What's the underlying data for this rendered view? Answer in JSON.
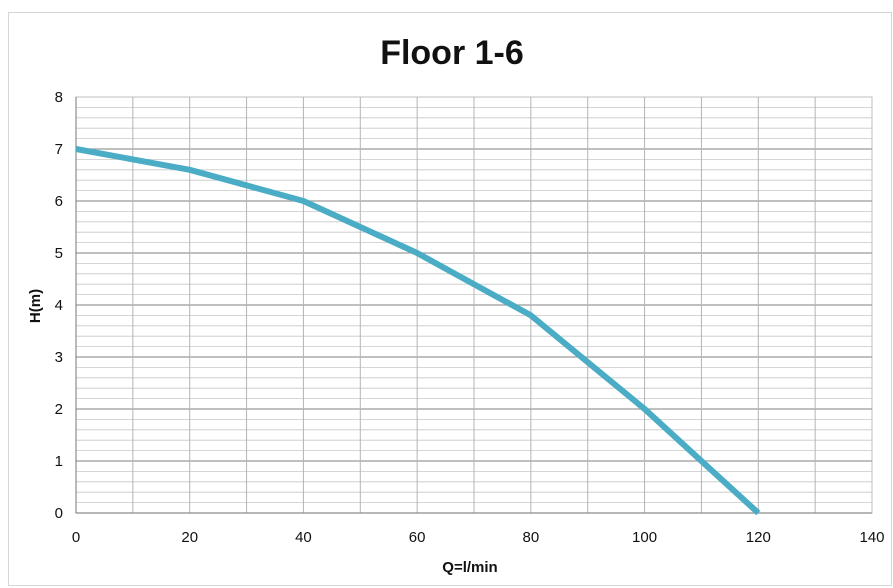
{
  "chart_data": {
    "type": "line",
    "title": "Floor 1-6",
    "xlabel": "Q=l/min",
    "ylabel": "H(m)",
    "xlim": [
      0,
      140
    ],
    "ylim": [
      0,
      8
    ],
    "x_ticks": [
      0,
      20,
      40,
      60,
      80,
      100,
      120,
      140
    ],
    "y_ticks": [
      0,
      1,
      2,
      3,
      4,
      5,
      6,
      7,
      8
    ],
    "grid": true,
    "legend": "none",
    "series": [
      {
        "color": "#4bacc6",
        "x": [
          0,
          10,
          20,
          30,
          40,
          50,
          60,
          70,
          80,
          90,
          100,
          110,
          120
        ],
        "y": [
          7.0,
          6.8,
          6.6,
          6.3,
          6.0,
          5.5,
          5.0,
          4.4,
          3.8,
          2.9,
          2.0,
          1.0,
          0.0
        ]
      }
    ]
  }
}
